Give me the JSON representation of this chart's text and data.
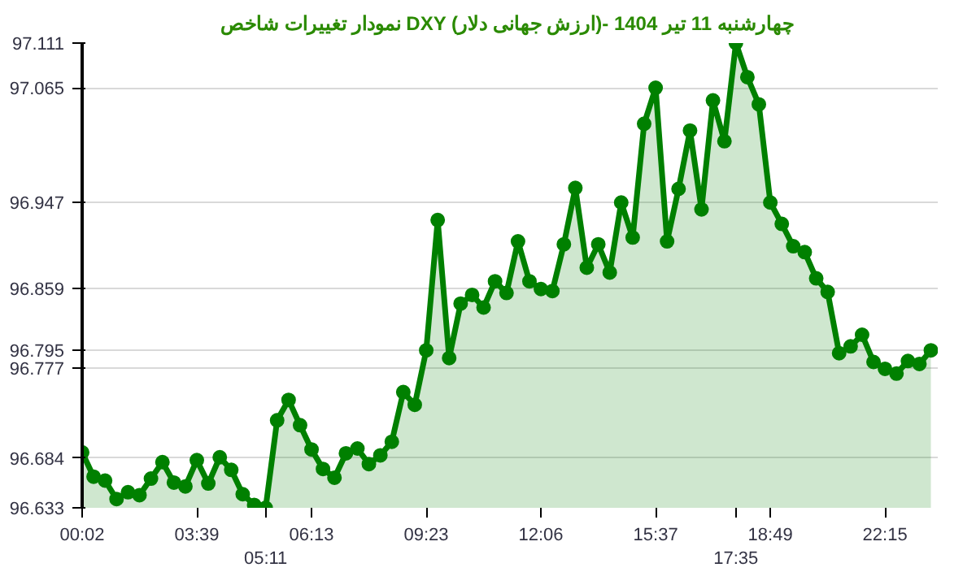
{
  "chart_data": {
    "type": "area",
    "title": "نمودار تغییرات شاخص DXY (ارزش جهانی دلار)- چهارشنبه  11 تیر 1404",
    "categories": [
      "00:02",
      null,
      null,
      null,
      null,
      null,
      null,
      null,
      null,
      null,
      "03:39",
      null,
      null,
      null,
      null,
      null,
      "05:11",
      null,
      null,
      null,
      "06:13",
      null,
      null,
      null,
      null,
      null,
      null,
      null,
      null,
      null,
      "09:23",
      null,
      null,
      null,
      null,
      null,
      null,
      null,
      null,
      null,
      "12:06",
      null,
      null,
      null,
      null,
      null,
      null,
      null,
      null,
      null,
      "15:37",
      null,
      null,
      null,
      null,
      null,
      null,
      "17:35",
      null,
      null,
      "18:49",
      null,
      null,
      null,
      null,
      null,
      null,
      null,
      null,
      null,
      "22:15",
      null,
      null,
      null,
      null
    ],
    "series": [
      {
        "color": "#008000",
        "values": [
          96.69,
          96.665,
          96.661,
          96.642,
          96.649,
          96.646,
          96.663,
          96.68,
          96.659,
          96.655,
          96.682,
          96.658,
          96.685,
          96.672,
          96.647,
          96.636,
          96.633,
          96.723,
          96.744,
          96.718,
          96.693,
          96.673,
          96.664,
          96.689,
          96.694,
          96.678,
          96.687,
          96.701,
          96.752,
          96.739,
          96.795,
          96.929,
          96.787,
          96.843,
          96.852,
          96.839,
          96.866,
          96.854,
          96.907,
          96.866,
          96.858,
          96.856,
          96.904,
          96.962,
          96.88,
          96.904,
          96.875,
          96.947,
          96.911,
          97.028,
          97.065,
          96.907,
          96.961,
          97.021,
          96.94,
          97.052,
          97.01,
          97.111,
          97.076,
          97.048,
          96.947,
          96.925,
          96.902,
          96.896,
          96.869,
          96.855,
          96.792,
          96.799,
          96.811,
          96.783,
          96.776,
          96.771,
          96.784,
          96.781,
          96.795
        ]
      }
    ],
    "ylim": [
      96.633,
      97.111
    ],
    "yticks": [
      96.633,
      96.684,
      96.777,
      96.795,
      96.859,
      96.947,
      97.065,
      97.111
    ],
    "grid": "y",
    "marker": "circle"
  }
}
